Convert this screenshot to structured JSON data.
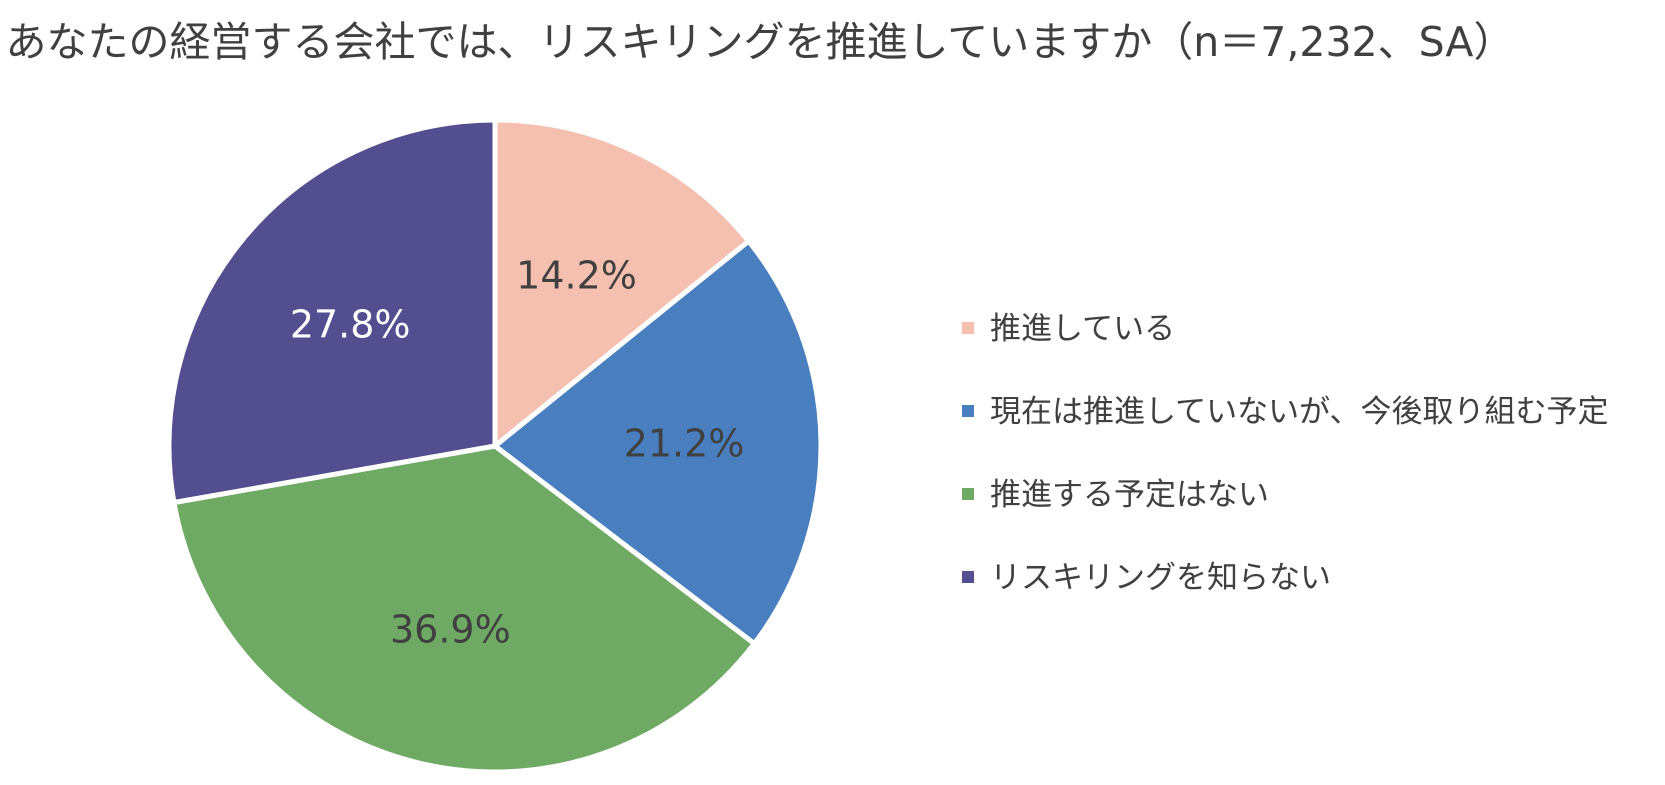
{
  "chart_data": {
    "type": "pie",
    "title": "あなたの経営する会社では、リスキリングを推進していますか（n＝7,232、SA）",
    "start_angle": "12 o'clock",
    "direction": "clockwise",
    "legend_position": "right",
    "slices": [
      {
        "label": "推進している",
        "value": 14.2,
        "display": "14.2%",
        "color": "#F5C0B0",
        "label_color": "#404040"
      },
      {
        "label": "現在は推進していないが、今後取り組む予定",
        "value": 21.2,
        "display": "21.2%",
        "color": "#4A7FBF",
        "label_color": "#404040"
      },
      {
        "label": "推進する予定はない",
        "value": 36.9,
        "display": "36.9%",
        "color": "#6EAA64",
        "label_color": "#404040"
      },
      {
        "label": "リスキリングを知らない",
        "value": 27.8,
        "display": "27.8%",
        "color": "#524E8F",
        "label_color": "#FFFFFF"
      }
    ]
  }
}
